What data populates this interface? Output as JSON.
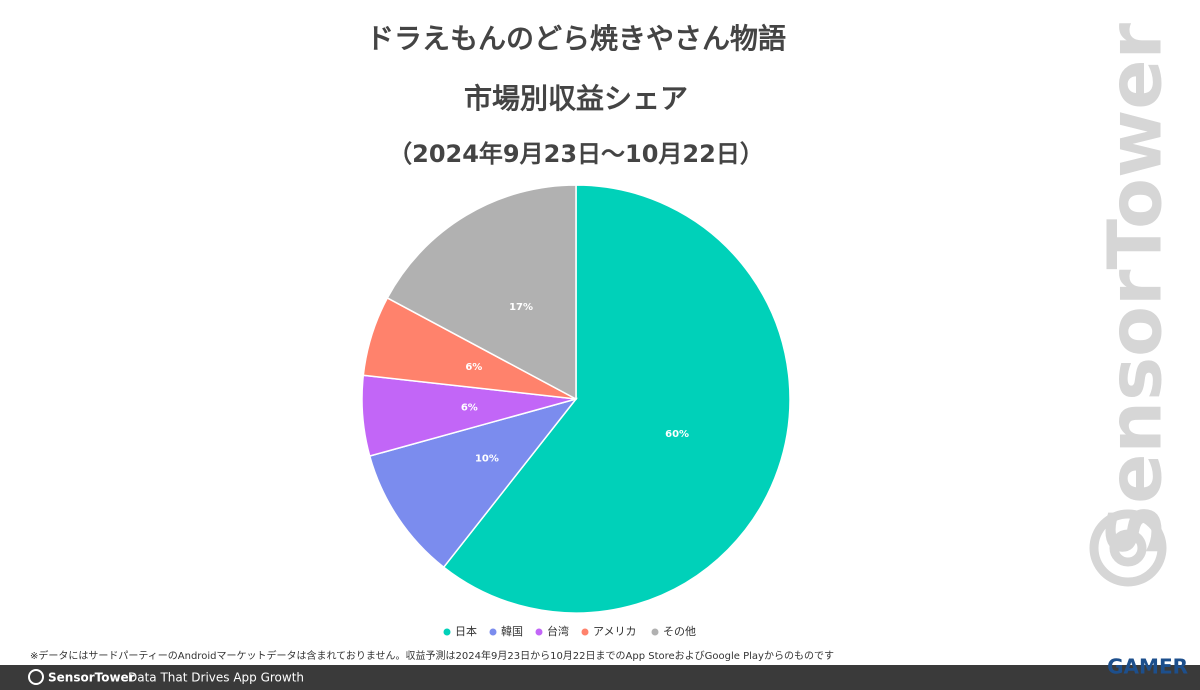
{
  "chart_data": {
    "type": "pie",
    "title": "ドラえもんのどら焼きやさん物語",
    "subtitle": "市場別収益シェア",
    "period": "（2024年9月23日〜10月22日）",
    "categories": [
      "日本",
      "韓国",
      "台湾",
      "アメリカ",
      "その他"
    ],
    "values": [
      60,
      10,
      6,
      6,
      17
    ],
    "value_labels": [
      "60%",
      "10%",
      "6%",
      "6%",
      "17%"
    ],
    "colors": [
      "#00d1b9",
      "#7b8cee",
      "#c266f7",
      "#ff826c",
      "#b1b1b1"
    ],
    "legend": "bottom"
  },
  "footnote": "※データにはサードパーティーのAndroidマーケットデータは含まれておりません。収益予測は2024年9月23日から10月22日までのApp StoreおよびGoogle Playからのものです",
  "footer": {
    "brand": "SensorTower",
    "tagline": "Data That Drives App Growth"
  },
  "watermark": "SensorTower",
  "logo": "GAMER"
}
